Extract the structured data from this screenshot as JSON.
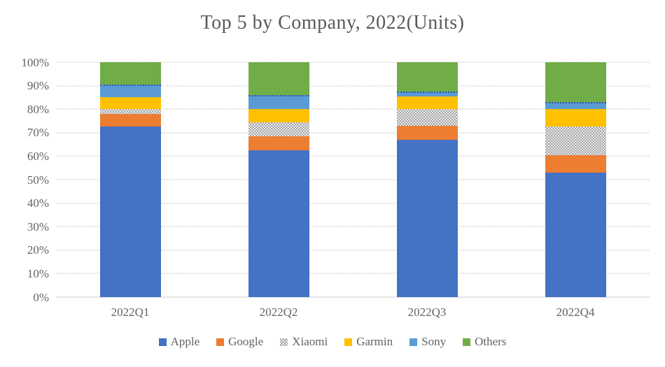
{
  "title": "Top 5 by Company, 2022(Units)",
  "chart_data": {
    "type": "bar",
    "subtype": "100-percent-stacked-column",
    "title": "Top 5 by Company, 2022(Units)",
    "categories": [
      "2022Q1",
      "2022Q2",
      "2022Q3",
      "2022Q4"
    ],
    "series": [
      {
        "name": "Apple",
        "color": "#4472C4",
        "values": [
          72.5,
          62.5,
          67.0,
          53.0
        ]
      },
      {
        "name": "Google",
        "color": "#ED7D31",
        "values": [
          5.5,
          6.0,
          6.0,
          7.5
        ]
      },
      {
        "name": "Xiaomi",
        "color": "#A5A5A5",
        "pattern": "checker",
        "values": [
          2.0,
          6.0,
          7.0,
          12.0
        ]
      },
      {
        "name": "Garmin",
        "color": "#FFC000",
        "values": [
          5.0,
          5.5,
          5.5,
          7.5
        ]
      },
      {
        "name": "Sony",
        "color": "#5B9BD5",
        "top_border_color": "#2E5597",
        "top_border_style": "dotted",
        "values": [
          5.5,
          6.0,
          2.0,
          3.0
        ]
      },
      {
        "name": "Others",
        "color": "#70AD47",
        "values": [
          9.5,
          14.0,
          12.5,
          17.0
        ]
      }
    ],
    "y_axis": {
      "min": 0,
      "max": 100,
      "tick_labels": [
        "0%",
        "10%",
        "20%",
        "30%",
        "40%",
        "50%",
        "60%",
        "70%",
        "80%",
        "90%",
        "100%"
      ]
    },
    "x_axis": {
      "tick_labels": [
        "2022Q1",
        "2022Q2",
        "2022Q3",
        "2022Q4"
      ]
    },
    "legend": {
      "position": "bottom",
      "entries": [
        "Apple",
        "Google",
        "Xiaomi",
        "Garmin",
        "Sony",
        "Others"
      ]
    },
    "grid": true,
    "colors": {
      "title_text": "#595959",
      "axis_text": "#636363",
      "gridline": "#d2d2d2"
    }
  }
}
